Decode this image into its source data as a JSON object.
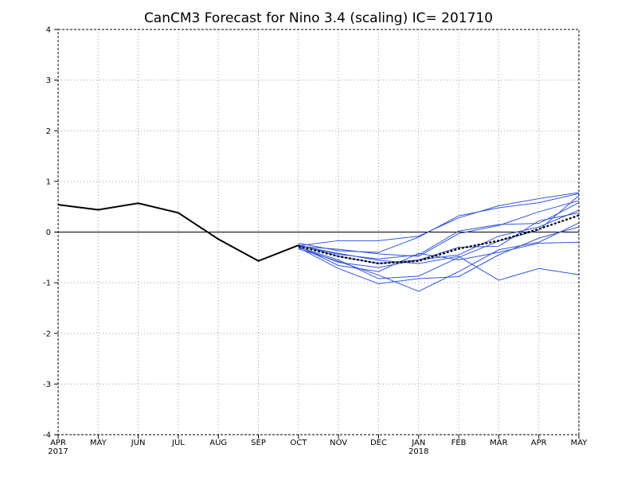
{
  "chart_data": {
    "type": "line",
    "title": "CanCM3 Forecast for Nino 3.4 (scaling) IC= 201710",
    "xlabel": "",
    "ylabel": "",
    "x_ticks": [
      "APR",
      "MAY",
      "JUN",
      "JUL",
      "AUG",
      "SEP",
      "OCT",
      "NOV",
      "DEC",
      "JAN",
      "FEB",
      "MAR",
      "APR",
      "MAY"
    ],
    "year_labels": [
      {
        "index": 0,
        "text": "2017"
      },
      {
        "index": 9,
        "text": "2018"
      }
    ],
    "ylim": [
      -4,
      4
    ],
    "y_ticks": [
      -4,
      -3,
      -2,
      -1,
      0,
      1,
      2,
      3,
      4
    ],
    "grid": true,
    "zero_line": true,
    "colors": {
      "observed": "#000000",
      "members": "#3355dd",
      "ensemble_mean": "#000000",
      "grid": "#999999"
    },
    "observed": {
      "start_index": 0,
      "values": [
        0.54,
        0.44,
        0.57,
        0.38,
        -0.14,
        -0.57,
        -0.26
      ]
    },
    "members_start_index": 6,
    "members": [
      [
        -0.27,
        -0.17,
        -0.17,
        -0.08,
        0.28,
        0.52,
        0.66,
        0.78
      ],
      [
        -0.22,
        -0.37,
        -0.4,
        -0.1,
        0.32,
        0.48,
        0.58,
        0.76
      ],
      [
        -0.26,
        -0.44,
        -0.53,
        -0.45,
        0.02,
        0.15,
        0.17,
        0.58
      ],
      [
        -0.28,
        -0.34,
        -0.43,
        -0.48,
        -0.03,
        0.13,
        0.4,
        0.62
      ],
      [
        -0.3,
        -0.55,
        -0.92,
        -0.87,
        -0.5,
        -0.18,
        0.04,
        0.72
      ],
      [
        -0.29,
        -0.6,
        -0.7,
        -0.55,
        -0.45,
        -0.08,
        0.1,
        0.43
      ],
      [
        -0.25,
        -0.48,
        -0.62,
        -0.55,
        -0.3,
        -0.28,
        0.22,
        0.38
      ],
      [
        -0.31,
        -0.72,
        -1.02,
        -0.92,
        -0.88,
        -0.45,
        -0.12,
        0.1
      ],
      [
        -0.27,
        -0.42,
        -0.56,
        -0.62,
        -0.48,
        -0.95,
        -0.72,
        -0.84
      ],
      [
        -0.33,
        -0.58,
        -0.85,
        -1.17,
        -0.78,
        -0.35,
        -0.2,
        0.18
      ],
      [
        -0.28,
        -0.66,
        -0.78,
        -0.42,
        -0.55,
        -0.4,
        -0.22,
        -0.2
      ]
    ],
    "ensemble_mean": {
      "start_index": 6,
      "values": [
        -0.28,
        -0.48,
        -0.62,
        -0.57,
        -0.33,
        -0.17,
        0.06,
        0.33
      ]
    }
  }
}
